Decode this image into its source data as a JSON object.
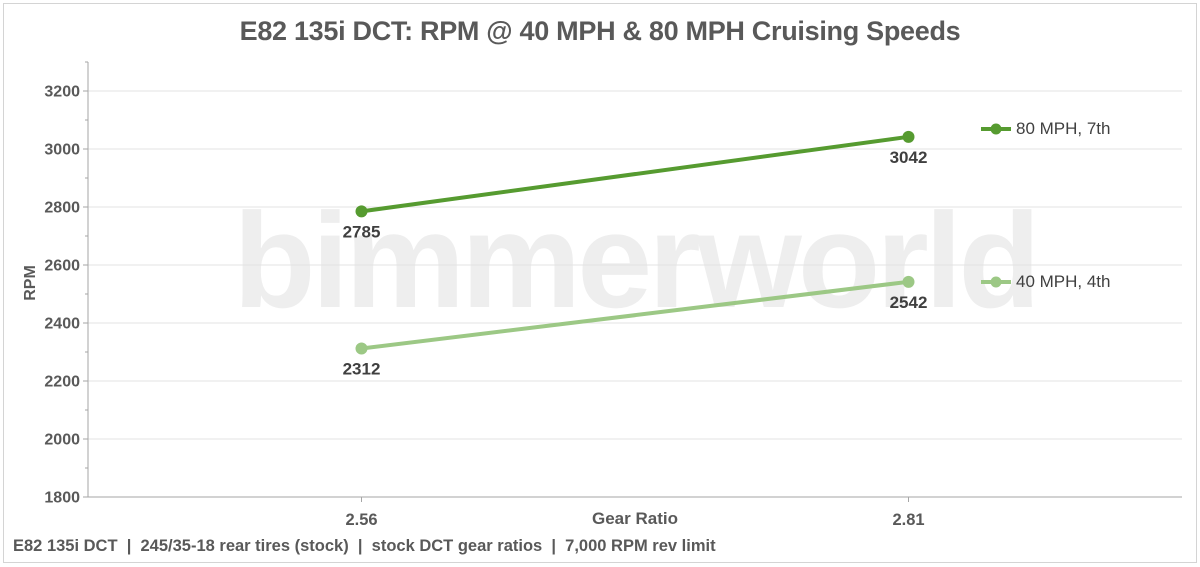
{
  "title": "E82 135i DCT: RPM @ 40 MPH & 80 MPH Cruising Speeds",
  "watermark": "bimmerworld",
  "footer": "E82 135i DCT  |  245/35-18 rear tires (stock)  |  stock DCT gear ratios  |  7,000 RPM rev limit",
  "chart_data": {
    "type": "line",
    "title": "E82 135i DCT: RPM @ 40 MPH & 80 MPH Cruising Speeds",
    "categories": [
      "2.56",
      "2.81"
    ],
    "series": [
      {
        "name": "80 MPH, 7th",
        "values": [
          2785,
          3042
        ],
        "color": "#569b30"
      },
      {
        "name": "40 MPH, 4th",
        "values": [
          2312,
          2542
        ],
        "color": "#9cc885"
      }
    ],
    "xlabel": "Gear Ratio",
    "ylabel": "RPM",
    "ylim": [
      1800,
      3300
    ],
    "y_ticks": [
      1800,
      2000,
      2200,
      2400,
      2600,
      2800,
      3000,
      3200
    ],
    "y_minor_step": 100,
    "grid": true,
    "data_labels": "below points",
    "legend_position": "right of line ends",
    "watermark_text": "bimmerworld",
    "footnote": "E82 135i DCT  |  245/35-18 rear tires (stock)  |  stock DCT gear ratios  |  7,000 RPM rev limit"
  },
  "colors": {
    "series_80mph": "#569b30",
    "series_40mph": "#9cc885",
    "title_text": "#595959",
    "axis_text": "#595959",
    "data_label_text": "#3f3f3f",
    "legend_text": "#404040",
    "gridline": "#e3e3e3",
    "axis_line": "#a6a6a6",
    "watermark": "#eeeeee",
    "frame_border": "#d4d4d4",
    "background": "#ffffff"
  }
}
